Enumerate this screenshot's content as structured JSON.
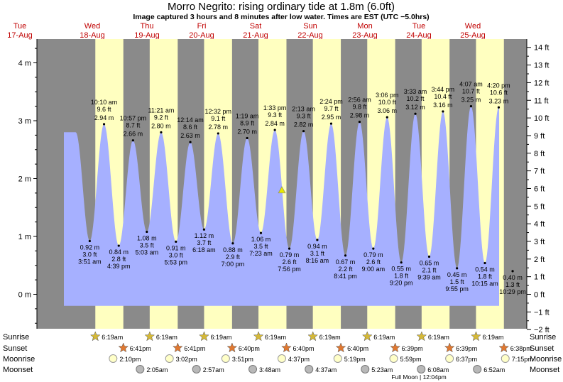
{
  "title": "Morro Negrito: rising  ordinary tide at 1.8m (6.0ft)",
  "subtitle": "Image captured 3 hours and 8 minutes after low water. Times are EST (UTC −5.0hrs)",
  "colors": {
    "night": "#8a8a8a",
    "day": "#ffffc0",
    "water": "#a6b0ff",
    "day_label": "#c00000",
    "marker": "#e8e800"
  },
  "days": [
    {
      "dow": "Tue",
      "date": "17-Aug"
    },
    {
      "dow": "Wed",
      "date": "18-Aug"
    },
    {
      "dow": "Thu",
      "date": "19-Aug"
    },
    {
      "dow": "Fri",
      "date": "20-Aug"
    },
    {
      "dow": "Sat",
      "date": "21-Aug"
    },
    {
      "dow": "Sun",
      "date": "22-Aug"
    },
    {
      "dow": "Mon",
      "date": "23-Aug"
    },
    {
      "dow": "Tue",
      "date": "24-Aug"
    },
    {
      "dow": "Wed",
      "date": "25-Aug"
    }
  ],
  "chart_data": {
    "type": "area",
    "y_left_unit": "m",
    "y_left_ticks": [
      0,
      1,
      2,
      3,
      4
    ],
    "y_left_tick_labels": [
      "0 m",
      "1 m",
      "2 m",
      "3 m",
      "4 m"
    ],
    "y_right_ticks": [
      -2,
      -1,
      0,
      1,
      2,
      3,
      4,
      5,
      6,
      7,
      8,
      9,
      10,
      11,
      12,
      13,
      14
    ],
    "y_right_tick_labels": [
      "−2 ft",
      "−1 ft",
      "0 ft",
      "1 ft",
      "2 ft",
      "3 ft",
      "4 ft",
      "5 ft",
      "6 ft",
      "7 ft",
      "8 ft",
      "9 ft",
      "10 ft",
      "11 ft",
      "12 ft",
      "13 ft",
      "14 ft"
    ],
    "ylim_m": [
      -0.6,
      4.3
    ],
    "x_start_day": "Tue 17-Aug",
    "current": {
      "level_m": 1.8,
      "level_ft": 6.0,
      "state": "rising"
    },
    "extremes": [
      {
        "type": "high",
        "time": "10:10 am",
        "ft": "9.6 ft",
        "m": "2.94 m"
      },
      {
        "type": "low",
        "time": "3:51 am",
        "ft": "3.0 ft",
        "m": "0.92 m"
      },
      {
        "type": "low",
        "time": "4:39 pm",
        "ft": "2.8 ft",
        "m": "0.84 m"
      },
      {
        "type": "high",
        "time": "10:57 pm",
        "ft": "8.7 ft",
        "m": "2.66 m"
      },
      {
        "type": "low",
        "time": "5:03 am",
        "ft": "3.5 ft",
        "m": "1.08 m"
      },
      {
        "type": "high",
        "time": "11:21 am",
        "ft": "9.2 ft",
        "m": "2.80 m"
      },
      {
        "type": "low",
        "time": "5:53 pm",
        "ft": "3.0 ft",
        "m": "0.91 m"
      },
      {
        "type": "high",
        "time": "12:14 am",
        "ft": "8.6 ft",
        "m": "2.63 m"
      },
      {
        "type": "low",
        "time": "6:18 am",
        "ft": "3.7 ft",
        "m": "1.12 m"
      },
      {
        "type": "high",
        "time": "12:32 pm",
        "ft": "9.1 ft",
        "m": "2.78 m"
      },
      {
        "type": "low",
        "time": "7:00 pm",
        "ft": "2.9 ft",
        "m": "0.88 m"
      },
      {
        "type": "high",
        "time": "1:19 am",
        "ft": "8.9 ft",
        "m": "2.70 m"
      },
      {
        "type": "low",
        "time": "7:23 am",
        "ft": "3.5 ft",
        "m": "1.06 m"
      },
      {
        "type": "high",
        "time": "1:33 pm",
        "ft": "9.3 ft",
        "m": "2.84 m"
      },
      {
        "type": "low",
        "time": "7:56 pm",
        "ft": "2.6 ft",
        "m": "0.79 m"
      },
      {
        "type": "high",
        "time": "2:13 am",
        "ft": "9.3 ft",
        "m": "2.82 m"
      },
      {
        "type": "low",
        "time": "8:16 am",
        "ft": "3.1 ft",
        "m": "0.94 m"
      },
      {
        "type": "high",
        "time": "2:24 pm",
        "ft": "9.7 ft",
        "m": "2.95 m"
      },
      {
        "type": "low",
        "time": "8:41 pm",
        "ft": "2.2 ft",
        "m": "0.67 m"
      },
      {
        "type": "high",
        "time": "2:56 am",
        "ft": "9.8 ft",
        "m": "2.98 m"
      },
      {
        "type": "low",
        "time": "9:00 am",
        "ft": "2.6 ft",
        "m": "0.79 m"
      },
      {
        "type": "high",
        "time": "3:06 pm",
        "ft": "10.0 ft",
        "m": "3.06 m"
      },
      {
        "type": "low",
        "time": "9:20 pm",
        "ft": "1.8 ft",
        "m": "0.55 m"
      },
      {
        "type": "high",
        "time": "3:33 am",
        "ft": "10.2 ft",
        "m": "3.12 m"
      },
      {
        "type": "low",
        "time": "9:39 am",
        "ft": "2.1 ft",
        "m": "0.65 m"
      },
      {
        "type": "high",
        "time": "3:44 pm",
        "ft": "10.4 ft",
        "m": "3.16 m"
      },
      {
        "type": "low",
        "time": "9:55 pm",
        "ft": "1.5 ft",
        "m": "0.45 m"
      },
      {
        "type": "high",
        "time": "4:07 am",
        "ft": "10.7 ft",
        "m": "3.25 m"
      },
      {
        "type": "low",
        "time": "10:15 am",
        "ft": "1.8 ft",
        "m": "0.54 m"
      },
      {
        "type": "high",
        "time": "4:20 pm",
        "ft": "10.6 ft",
        "m": "3.23 m"
      },
      {
        "type": "low",
        "time": "10:29 pm",
        "ft": "1.3 ft",
        "m": "0.40 m"
      }
    ]
  },
  "sun_moon": {
    "row_labels": {
      "sunrise": "Sunrise",
      "sunset": "Sunset",
      "moonrise": "Moonrise",
      "moonset": "Moonset"
    },
    "sunrise": [
      "6:19am",
      "6:19am",
      "6:19am",
      "6:19am",
      "6:19am",
      "6:19am",
      "6:19am",
      "6:19am"
    ],
    "sunset": [
      "6:41pm",
      "6:41pm",
      "6:40pm",
      "6:40pm",
      "6:40pm",
      "6:39pm",
      "6:39pm",
      "6:38pm"
    ],
    "moonrise": [
      "2:10pm",
      "3:02pm",
      "3:51pm",
      "4:37pm",
      "5:19pm",
      "5:59pm",
      "6:37pm",
      "7:15pm"
    ],
    "moonset": [
      "2:05am",
      "2:57am",
      "3:48am",
      "4:37am",
      "5:23am",
      "6:08am",
      "6:52am"
    ],
    "full_moon_note": "Full Moon | 12:04pm"
  }
}
